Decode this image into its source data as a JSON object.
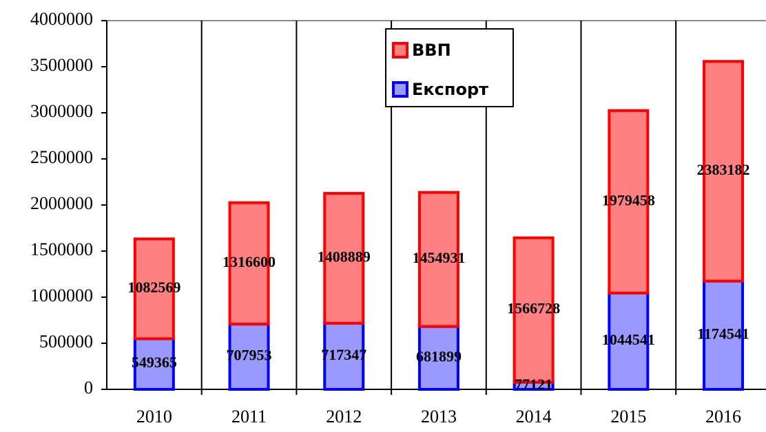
{
  "chart_data": {
    "type": "stacked_bar",
    "categories": [
      "2010",
      "2011",
      "2012",
      "2013",
      "2014",
      "2015",
      "2016"
    ],
    "series": [
      {
        "name": "Експорт",
        "color": "#9999ff",
        "stroke": "#0000ff",
        "values": [
          549365,
          707953,
          717347,
          681899,
          77121,
          1044541,
          1174541
        ]
      },
      {
        "name": "ВВП",
        "color": "#ff8080",
        "stroke": "#ff0000",
        "values": [
          1082569,
          1316600,
          1408889,
          1454931,
          1566728,
          1979458,
          2383182
        ]
      }
    ],
    "ylim": [
      0,
      4000000
    ],
    "yticks": [
      0,
      500000,
      1000000,
      1500000,
      2000000,
      2500000,
      3000000,
      3500000,
      4000000
    ],
    "legend": "top"
  }
}
